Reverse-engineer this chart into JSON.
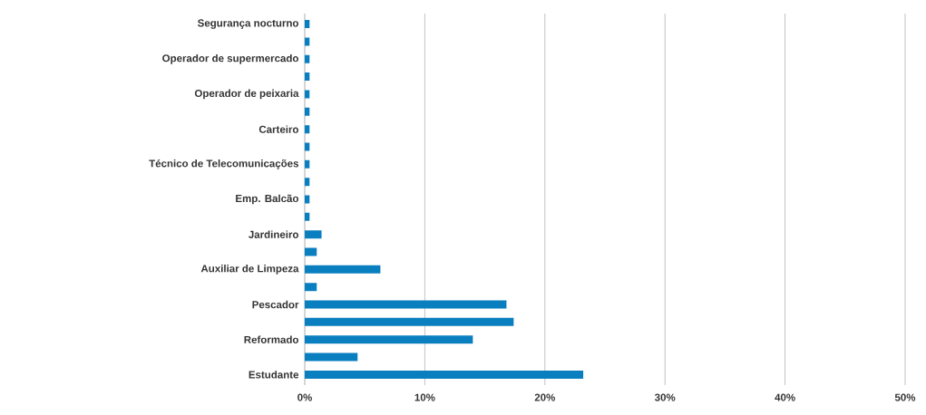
{
  "chart_data": {
    "type": "bar",
    "orientation": "horizontal",
    "categories": [
      "Segurança nocturno",
      null,
      "Operador de supermercado",
      null,
      "Operador de peixaria",
      null,
      "Carteiro",
      null,
      "Técnico de Telecomunicações",
      null,
      "Emp. Balcão",
      null,
      "Jardineiro",
      null,
      "Auxiliar de Limpeza",
      null,
      "Pescador",
      null,
      "Reformado",
      null,
      "Estudante"
    ],
    "values": [
      0.4,
      0.4,
      0.4,
      0.4,
      0.4,
      0.4,
      0.4,
      0.4,
      0.4,
      0.4,
      0.4,
      0.4,
      1.4,
      1.0,
      6.3,
      1.0,
      16.8,
      17.4,
      14.0,
      4.4,
      23.2
    ],
    "color": "#0a7fc0",
    "xlim": [
      0,
      50
    ],
    "xticks": [
      {
        "value": 0,
        "label": "0%"
      },
      {
        "value": 10,
        "label": "10%"
      },
      {
        "value": 20,
        "label": "20%"
      },
      {
        "value": 30,
        "label": "30%"
      },
      {
        "value": 40,
        "label": "40%"
      },
      {
        "value": 50,
        "label": "50%"
      }
    ],
    "grid": "x"
  }
}
